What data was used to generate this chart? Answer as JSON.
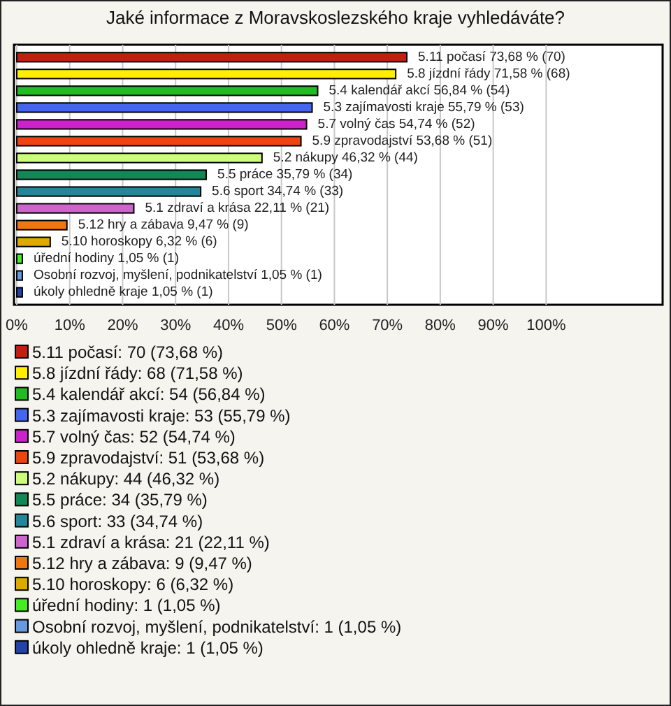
{
  "chart_data": {
    "type": "bar",
    "orientation": "horizontal",
    "title": "Jaké informace z Moravskoslezského kraje vyhledáváte?",
    "categories": [
      "5.11 počasí",
      "5.8 jízdní řády",
      "5.4 kalendář akcí",
      "5.3 zajímavosti kraje",
      "5.7 volný čas",
      "5.9 zpravodajství",
      "5.2 nákupy",
      "5.5 práce",
      "5.6 sport",
      "5.1 zdraví a krása",
      "5.12 hry a zábava",
      "5.10 horoskopy",
      "úřední hodiny",
      "Osobní rozvoj, myšlení, podnikatelství",
      "úkoly ohledně kraje"
    ],
    "xlim": [
      0,
      122
    ],
    "xticks": [
      {
        "value": 0,
        "label": "0%"
      },
      {
        "value": 10,
        "label": "10%"
      },
      {
        "value": 20,
        "label": "20%"
      },
      {
        "value": 30,
        "label": "30%"
      },
      {
        "value": 40,
        "label": "40%"
      },
      {
        "value": 50,
        "label": "50%"
      },
      {
        "value": 60,
        "label": "60%"
      },
      {
        "value": 70,
        "label": "70%"
      },
      {
        "value": 80,
        "label": "80%"
      },
      {
        "value": 90,
        "label": "90%"
      },
      {
        "value": 100,
        "label": "100%"
      }
    ],
    "grid": "x",
    "legend": "bottom",
    "series": [
      {
        "name": "5.11 počasí: 70 (73,68 %)",
        "color": "#c0200f",
        "values": [
          73.68,
          null,
          null,
          null,
          null,
          null,
          null,
          null,
          null,
          null,
          null,
          null,
          null,
          null,
          null
        ],
        "value_labels": [
          "73,68 % (70)",
          null,
          null,
          null,
          null,
          null,
          null,
          null,
          null,
          null,
          null,
          null,
          null,
          null,
          null
        ]
      },
      {
        "name": "5.8 jízdní řády: 68 (71,58 %)",
        "color": "#ffee00",
        "values": [
          null,
          71.58,
          null,
          null,
          null,
          null,
          null,
          null,
          null,
          null,
          null,
          null,
          null,
          null,
          null
        ],
        "value_labels": [
          null,
          "71,58 % (68)",
          null,
          null,
          null,
          null,
          null,
          null,
          null,
          null,
          null,
          null,
          null,
          null,
          null
        ]
      },
      {
        "name": "5.4 kalendář akcí: 54 (56,84 %)",
        "color": "#22bb22",
        "values": [
          null,
          null,
          56.84,
          null,
          null,
          null,
          null,
          null,
          null,
          null,
          null,
          null,
          null,
          null,
          null
        ],
        "value_labels": [
          null,
          null,
          "56,84 % (54)",
          null,
          null,
          null,
          null,
          null,
          null,
          null,
          null,
          null,
          null,
          null,
          null
        ]
      },
      {
        "name": "5.3 zajímavosti kraje: 53 (55,79 %)",
        "color": "#4466ee",
        "values": [
          null,
          null,
          null,
          55.79,
          null,
          null,
          null,
          null,
          null,
          null,
          null,
          null,
          null,
          null,
          null
        ],
        "value_labels": [
          null,
          null,
          null,
          "55,79 % (53)",
          null,
          null,
          null,
          null,
          null,
          null,
          null,
          null,
          null,
          null,
          null
        ]
      },
      {
        "name": "5.7 volný čas: 52 (54,74 %)",
        "color": "#cc22cc",
        "values": [
          null,
          null,
          null,
          null,
          54.74,
          null,
          null,
          null,
          null,
          null,
          null,
          null,
          null,
          null,
          null
        ],
        "value_labels": [
          null,
          null,
          null,
          null,
          "54,74 % (52)",
          null,
          null,
          null,
          null,
          null,
          null,
          null,
          null,
          null,
          null
        ]
      },
      {
        "name": "5.9 zpravodajství: 51 (53,68 %)",
        "color": "#ee4411",
        "values": [
          null,
          null,
          null,
          null,
          null,
          53.68,
          null,
          null,
          null,
          null,
          null,
          null,
          null,
          null,
          null
        ],
        "value_labels": [
          null,
          null,
          null,
          null,
          null,
          "53,68 % (51)",
          null,
          null,
          null,
          null,
          null,
          null,
          null,
          null,
          null
        ]
      },
      {
        "name": "5.2 nákupy: 44 (46,32 %)",
        "color": "#ccff77",
        "values": [
          null,
          null,
          null,
          null,
          null,
          null,
          46.32,
          null,
          null,
          null,
          null,
          null,
          null,
          null,
          null
        ],
        "value_labels": [
          null,
          null,
          null,
          null,
          null,
          null,
          "46,32 % (44)",
          null,
          null,
          null,
          null,
          null,
          null,
          null,
          null
        ]
      },
      {
        "name": "5.5 práce: 34 (35,79 %)",
        "color": "#118855",
        "values": [
          null,
          null,
          null,
          null,
          null,
          null,
          null,
          35.79,
          null,
          null,
          null,
          null,
          null,
          null,
          null
        ],
        "value_labels": [
          null,
          null,
          null,
          null,
          null,
          null,
          null,
          "35,79 % (34)",
          null,
          null,
          null,
          null,
          null,
          null,
          null
        ]
      },
      {
        "name": "5.6 sport: 33 (34,74 %)",
        "color": "#228899",
        "values": [
          null,
          null,
          null,
          null,
          null,
          null,
          null,
          null,
          34.74,
          null,
          null,
          null,
          null,
          null,
          null
        ],
        "value_labels": [
          null,
          null,
          null,
          null,
          null,
          null,
          null,
          null,
          "34,74 % (33)",
          null,
          null,
          null,
          null,
          null,
          null
        ]
      },
      {
        "name": "5.1 zdraví a krása: 21 (22,11 %)",
        "color": "#cc66cc",
        "values": [
          null,
          null,
          null,
          null,
          null,
          null,
          null,
          null,
          null,
          22.11,
          null,
          null,
          null,
          null,
          null
        ],
        "value_labels": [
          null,
          null,
          null,
          null,
          null,
          null,
          null,
          null,
          null,
          "22,11 % (21)",
          null,
          null,
          null,
          null,
          null
        ]
      },
      {
        "name": "5.12 hry a zábava: 9 (9,47 %)",
        "color": "#ee7711",
        "values": [
          null,
          null,
          null,
          null,
          null,
          null,
          null,
          null,
          null,
          null,
          9.47,
          null,
          null,
          null,
          null
        ],
        "value_labels": [
          null,
          null,
          null,
          null,
          null,
          null,
          null,
          null,
          null,
          null,
          "9,47 % (9)",
          null,
          null,
          null,
          null
        ]
      },
      {
        "name": "5.10 horoskopy: 6 (6,32 %)",
        "color": "#ddaa00",
        "values": [
          null,
          null,
          null,
          null,
          null,
          null,
          null,
          null,
          null,
          null,
          null,
          6.32,
          null,
          null,
          null
        ],
        "value_labels": [
          null,
          null,
          null,
          null,
          null,
          null,
          null,
          null,
          null,
          null,
          null,
          "6,32 % (6)",
          null,
          null,
          null
        ]
      },
      {
        "name": "úřední hodiny: 1 (1,05 %)",
        "color": "#44ee22",
        "values": [
          null,
          null,
          null,
          null,
          null,
          null,
          null,
          null,
          null,
          null,
          null,
          null,
          1.05,
          null,
          null
        ],
        "value_labels": [
          null,
          null,
          null,
          null,
          null,
          null,
          null,
          null,
          null,
          null,
          null,
          null,
          "1,05 % (1)",
          null,
          null
        ]
      },
      {
        "name": "Osobní rozvoj, myšlení, podnikatelství: 1 (1,05 %)",
        "color": "#6699dd",
        "values": [
          null,
          null,
          null,
          null,
          null,
          null,
          null,
          null,
          null,
          null,
          null,
          null,
          null,
          1.05,
          null
        ],
        "value_labels": [
          null,
          null,
          null,
          null,
          null,
          null,
          null,
          null,
          null,
          null,
          null,
          null,
          null,
          "1,05 % (1)",
          null
        ]
      },
      {
        "name": "úkoly ohledně kraje: 1 (1,05 %)",
        "color": "#2244aa",
        "values": [
          null,
          null,
          null,
          null,
          null,
          null,
          null,
          null,
          null,
          null,
          null,
          null,
          null,
          null,
          1.05
        ],
        "value_labels": [
          null,
          null,
          null,
          null,
          null,
          null,
          null,
          null,
          null,
          null,
          null,
          null,
          null,
          null,
          "1,05 % (1)"
        ]
      }
    ]
  }
}
